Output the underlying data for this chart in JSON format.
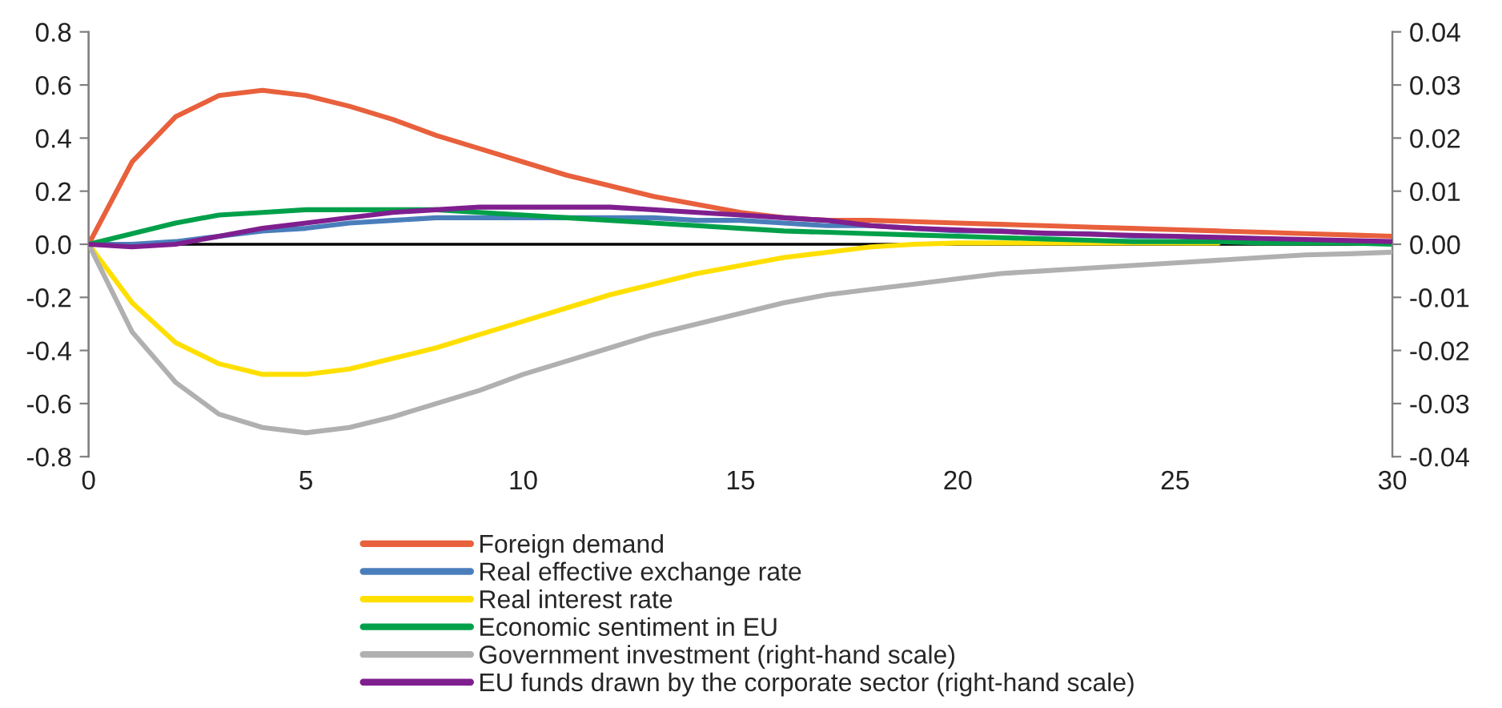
{
  "chart_data": {
    "type": "line",
    "x": [
      0,
      1,
      2,
      3,
      4,
      5,
      6,
      7,
      8,
      9,
      10,
      11,
      12,
      13,
      14,
      15,
      16,
      17,
      18,
      19,
      20,
      21,
      22,
      23,
      24,
      25,
      26,
      27,
      28,
      29,
      30
    ],
    "series": [
      {
        "name": "Foreign demand",
        "color": "#e8603c",
        "values": [
          0,
          0.31,
          0.48,
          0.56,
          0.58,
          0.56,
          0.52,
          0.47,
          0.41,
          0.36,
          0.31,
          0.26,
          0.22,
          0.18,
          0.15,
          0.12,
          0.1,
          0.09,
          0.09,
          0.085,
          0.08,
          0.075,
          0.07,
          0.065,
          0.06,
          0.055,
          0.05,
          0.045,
          0.04,
          0.035,
          0.03
        ]
      },
      {
        "name": "Real effective exchange rate",
        "color": "#4a7ebb",
        "values": [
          0,
          0.0,
          0.01,
          0.03,
          0.05,
          0.06,
          0.08,
          0.09,
          0.1,
          0.1,
          0.1,
          0.1,
          0.1,
          0.1,
          0.09,
          0.09,
          0.08,
          0.07,
          0.07,
          0.06,
          0.05,
          0.05,
          0.04,
          0.04,
          0.03,
          0.03,
          0.02,
          null,
          null,
          null,
          null
        ]
      },
      {
        "name": "Real interest rate",
        "color": "#ffdf00",
        "values": [
          0,
          -0.22,
          -0.37,
          -0.45,
          -0.49,
          -0.49,
          -0.47,
          -0.43,
          -0.39,
          -0.34,
          -0.29,
          -0.24,
          -0.19,
          -0.15,
          -0.11,
          -0.08,
          -0.05,
          -0.03,
          -0.01,
          0.0,
          0.005,
          0.005,
          0.005,
          0.005,
          0.005,
          0.005,
          0.005,
          null,
          null,
          null,
          null
        ]
      },
      {
        "name": "Economic sentiment in EU",
        "color": "#00a04a",
        "values": [
          0,
          0.04,
          0.08,
          0.11,
          0.12,
          0.13,
          0.13,
          0.13,
          0.13,
          0.12,
          0.11,
          0.1,
          0.09,
          0.08,
          0.07,
          0.06,
          0.05,
          0.045,
          0.04,
          0.035,
          0.03,
          0.025,
          0.02,
          0.015,
          0.01,
          0.01,
          0.01,
          0.005,
          0.005,
          0.005,
          0.0
        ]
      },
      {
        "name": "Government investment (right-hand scale)",
        "color": "#b0b0b0",
        "axis": "y2",
        "values": [
          0,
          -0.0165,
          -0.026,
          -0.032,
          -0.0345,
          -0.0355,
          -0.0345,
          -0.0325,
          -0.03,
          -0.0275,
          -0.0245,
          -0.022,
          -0.0195,
          -0.017,
          -0.015,
          -0.013,
          -0.011,
          -0.0095,
          -0.0085,
          -0.0075,
          -0.0065,
          -0.0055,
          -0.005,
          -0.0045,
          -0.004,
          -0.0035,
          -0.003,
          -0.0025,
          -0.002,
          -0.0018,
          -0.0015
        ]
      },
      {
        "name": "EU funds drawn by the corporate sector (right-hand scale)",
        "color": "#7f1f8f",
        "axis": "y2",
        "values": [
          0,
          -0.0005,
          0,
          0.0015,
          0.003,
          0.004,
          0.005,
          0.006,
          0.0065,
          0.007,
          0.007,
          0.007,
          0.007,
          0.0065,
          0.006,
          0.0055,
          0.005,
          0.0045,
          0.0035,
          0.003,
          0.0027,
          0.0024,
          0.0021,
          0.0019,
          0.0017,
          0.0015,
          0.0013,
          0.0011,
          0.0009,
          0.0007,
          0.0005
        ]
      }
    ],
    "xlim": [
      0,
      30
    ],
    "xticks": [
      0,
      5,
      10,
      15,
      20,
      25,
      30
    ],
    "ylim": [
      -0.8,
      0.8
    ],
    "yticks": [
      {
        "value": -0.8,
        "label": "-0.8"
      },
      {
        "value": -0.6,
        "label": "-0.6"
      },
      {
        "value": -0.4,
        "label": "-0.4"
      },
      {
        "value": -0.2,
        "label": "-0.2"
      },
      {
        "value": 0,
        "label": "0.0"
      },
      {
        "value": 0.2,
        "label": "0.2"
      },
      {
        "value": 0.4,
        "label": "0.4"
      },
      {
        "value": 0.6,
        "label": "0.6"
      },
      {
        "value": 0.8,
        "label": "0.8"
      }
    ],
    "y2lim": [
      -0.04,
      0.04
    ],
    "y2ticks": [
      {
        "value": -0.04,
        "label": "-0.04"
      },
      {
        "value": -0.03,
        "label": "-0.03"
      },
      {
        "value": -0.02,
        "label": "-0.02"
      },
      {
        "value": -0.01,
        "label": "-0.01"
      },
      {
        "value": 0,
        "label": "0.00"
      },
      {
        "value": 0.01,
        "label": "0.01"
      },
      {
        "value": 0.02,
        "label": "0.02"
      },
      {
        "value": 0.03,
        "label": "0.03"
      },
      {
        "value": 0.04,
        "label": "0.04"
      }
    ],
    "ref_lines": [
      {
        "axis": "y",
        "value": 0,
        "color": "#000000"
      }
    ],
    "grid": false,
    "legend": "bottom",
    "line_style": "solid",
    "marker": "none"
  }
}
